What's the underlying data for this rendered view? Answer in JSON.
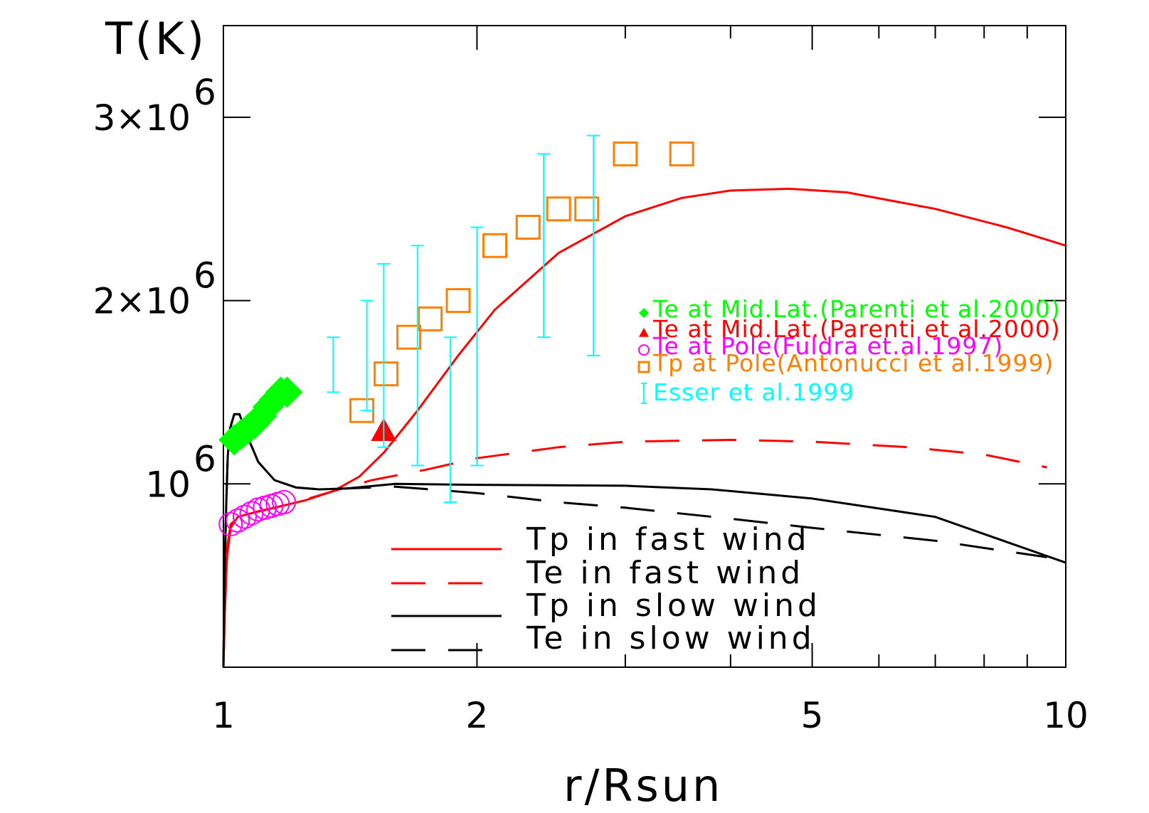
{
  "chart_data": {
    "type": "line",
    "y_axis_title": "T(K)",
    "x_axis_title": "r/Rsun",
    "x_scale": "log",
    "xlim": [
      1,
      10
    ],
    "ylim": [
      0,
      3500000
    ],
    "x_ticks": [
      {
        "value": 1,
        "label": "1"
      },
      {
        "value": 2,
        "label": "2"
      },
      {
        "value": 5,
        "label": "5"
      },
      {
        "value": 10,
        "label": "10"
      }
    ],
    "x_minor_ticks": [
      3,
      4,
      6,
      7,
      8,
      9
    ],
    "y_ticks": [
      {
        "value": 1000000,
        "label_base": "10",
        "label_exp": "6"
      },
      {
        "value": 2000000,
        "label_base": "2×10",
        "label_exp": "6"
      },
      {
        "value": 3000000,
        "label_base": "3×10",
        "label_exp": "6"
      }
    ],
    "series": [
      {
        "name": "Tp in fast wind",
        "color": "#ff0000",
        "dash": "solid",
        "points": [
          [
            1.0,
            0
          ],
          [
            1.004,
            300000
          ],
          [
            1.01,
            600000
          ],
          [
            1.02,
            760000
          ],
          [
            1.04,
            820000
          ],
          [
            1.08,
            840000
          ],
          [
            1.15,
            870000
          ],
          [
            1.25,
            910000
          ],
          [
            1.35,
            960000
          ],
          [
            1.45,
            1040000
          ],
          [
            1.55,
            1170000
          ],
          [
            1.7,
            1400000
          ],
          [
            1.9,
            1700000
          ],
          [
            2.1,
            1950000
          ],
          [
            2.5,
            2260000
          ],
          [
            3.0,
            2460000
          ],
          [
            3.5,
            2560000
          ],
          [
            4.0,
            2600000
          ],
          [
            4.7,
            2610000
          ],
          [
            5.5,
            2590000
          ],
          [
            7.0,
            2500000
          ],
          [
            8.5,
            2400000
          ],
          [
            10.0,
            2300000
          ]
        ]
      },
      {
        "name": "Te in fast wind",
        "color": "#ff0000",
        "dash": "dashed",
        "points": [
          [
            1.0,
            0
          ],
          [
            1.004,
            350000
          ],
          [
            1.01,
            650000
          ],
          [
            1.02,
            780000
          ],
          [
            1.05,
            830000
          ],
          [
            1.1,
            850000
          ],
          [
            1.2,
            890000
          ],
          [
            1.35,
            960000
          ],
          [
            1.5,
            1020000
          ],
          [
            1.75,
            1080000
          ],
          [
            2.0,
            1140000
          ],
          [
            2.5,
            1200000
          ],
          [
            3.0,
            1230000
          ],
          [
            4.0,
            1240000
          ],
          [
            5.0,
            1230000
          ],
          [
            6.5,
            1200000
          ],
          [
            8.0,
            1160000
          ],
          [
            9.5,
            1090000
          ]
        ]
      },
      {
        "name": "Tp in slow wind",
        "color": "#000000",
        "dash": "solid",
        "points": [
          [
            1.0,
            0
          ],
          [
            1.003,
            500000
          ],
          [
            1.008,
            900000
          ],
          [
            1.012,
            1150000
          ],
          [
            1.018,
            1300000
          ],
          [
            1.03,
            1380000
          ],
          [
            1.045,
            1380000
          ],
          [
            1.07,
            1250000
          ],
          [
            1.1,
            1120000
          ],
          [
            1.15,
            1020000
          ],
          [
            1.22,
            980000
          ],
          [
            1.3,
            970000
          ],
          [
            1.4,
            975000
          ],
          [
            1.6,
            1000000
          ],
          [
            2.0,
            995000
          ],
          [
            3.0,
            990000
          ],
          [
            3.8,
            970000
          ],
          [
            5.0,
            920000
          ],
          [
            7.0,
            820000
          ],
          [
            10.0,
            570000
          ]
        ]
      },
      {
        "name": "Te in slow wind",
        "color": "#000000",
        "dash": "dashed",
        "points": [
          [
            1.0,
            0
          ],
          [
            1.003,
            500000
          ],
          [
            1.008,
            900000
          ],
          [
            1.012,
            1150000
          ],
          [
            1.018,
            1300000
          ],
          [
            1.03,
            1380000
          ],
          [
            1.045,
            1380000
          ],
          [
            1.07,
            1250000
          ],
          [
            1.1,
            1120000
          ],
          [
            1.15,
            1020000
          ],
          [
            1.22,
            980000
          ],
          [
            1.3,
            970000
          ],
          [
            1.4,
            975000
          ],
          [
            1.6,
            985000
          ],
          [
            2.0,
            950000
          ],
          [
            2.5,
            900000
          ],
          [
            3.0,
            870000
          ],
          [
            4.0,
            810000
          ],
          [
            5.0,
            760000
          ],
          [
            7.0,
            690000
          ],
          [
            9.5,
            600000
          ]
        ]
      }
    ],
    "observations": [
      {
        "name": "Te at Mid.Lat.(Parenti et al.2000)",
        "color": "#00ff00",
        "marker": "diamond",
        "points": [
          [
            1.03,
            1240000
          ],
          [
            1.05,
            1270000
          ],
          [
            1.07,
            1300000
          ],
          [
            1.09,
            1330000
          ],
          [
            1.11,
            1370000
          ],
          [
            1.13,
            1420000
          ],
          [
            1.15,
            1460000
          ],
          [
            1.17,
            1500000
          ],
          [
            1.19,
            1500000
          ]
        ]
      },
      {
        "name": "Te at Mid.Lat.(Parenti et al.2000)",
        "color": "#ff0000",
        "marker": "triangle",
        "points": [
          [
            1.55,
            1290000
          ]
        ]
      },
      {
        "name": "Te at Pole(Fuldra et.al.1997)",
        "color": "#ff00ff",
        "marker": "circle",
        "points": [
          [
            1.02,
            780000
          ],
          [
            1.04,
            800000
          ],
          [
            1.06,
            820000
          ],
          [
            1.08,
            840000
          ],
          [
            1.1,
            860000
          ],
          [
            1.12,
            870000
          ],
          [
            1.14,
            880000
          ],
          [
            1.16,
            890000
          ],
          [
            1.18,
            900000
          ]
        ]
      },
      {
        "name": "Tp at Pole(Antonucci et al.1999)",
        "color": "#ff7f00",
        "marker": "square",
        "points": [
          [
            1.46,
            1400000
          ],
          [
            1.56,
            1600000
          ],
          [
            1.66,
            1800000
          ],
          [
            1.76,
            1900000
          ],
          [
            1.9,
            2000000
          ],
          [
            2.1,
            2300000
          ],
          [
            2.3,
            2400000
          ],
          [
            2.5,
            2500000
          ],
          [
            2.7,
            2500000
          ],
          [
            3.0,
            2800000
          ],
          [
            3.5,
            2800000
          ]
        ]
      },
      {
        "name": "Esser et al.1999",
        "color": "#00ffff",
        "marker": "errorbar",
        "points": [
          {
            "x": 1.35,
            "low": 1500000,
            "high": 1800000
          },
          {
            "x": 1.48,
            "low": 1400000,
            "high": 2000000
          },
          {
            "x": 1.55,
            "low": 1200000,
            "high": 2200000
          },
          {
            "x": 1.7,
            "low": 1100000,
            "high": 2300000
          },
          {
            "x": 1.86,
            "low": 900000,
            "high": 1800000
          },
          {
            "x": 2.0,
            "low": 1100000,
            "high": 2400000
          },
          {
            "x": 2.4,
            "low": 1800000,
            "high": 2800000
          },
          {
            "x": 2.75,
            "low": 1700000,
            "high": 2900000
          }
        ]
      }
    ],
    "legend_placement": "bottom-center"
  }
}
